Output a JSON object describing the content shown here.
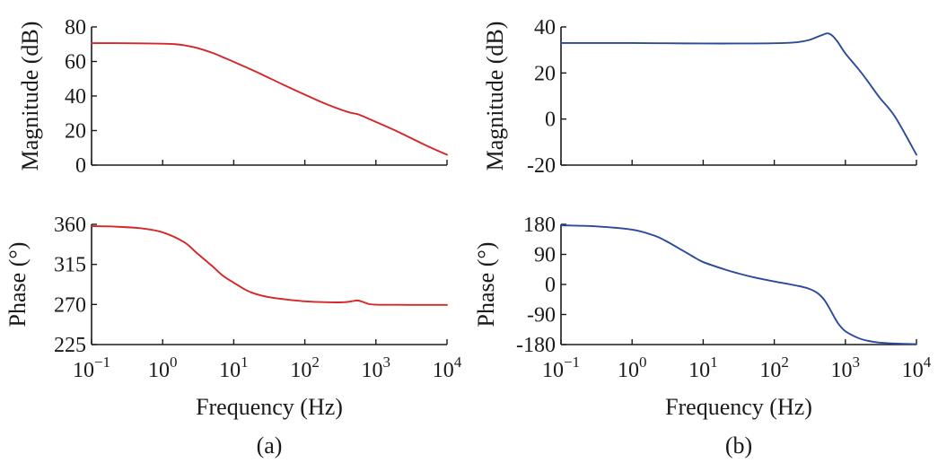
{
  "chart_data": [
    {
      "id": "a",
      "panel_label": "(a)",
      "color": "#d62728",
      "xlabel": "Frequency (Hz)",
      "xscale": "log",
      "xlim": [
        0.1,
        10000
      ],
      "xticks": [
        {
          "value": 0.1,
          "base": "10",
          "exp": "−1"
        },
        {
          "value": 1,
          "base": "10",
          "exp": "0"
        },
        {
          "value": 10,
          "base": "10",
          "exp": "1"
        },
        {
          "value": 100,
          "base": "10",
          "exp": "2"
        },
        {
          "value": 1000,
          "base": "10",
          "exp": "3"
        },
        {
          "value": 10000,
          "base": "10",
          "exp": "4"
        }
      ],
      "magnitude": {
        "ylabel": "Magnitude (dB)",
        "ylim": [
          0,
          80
        ],
        "yticks": [
          {
            "value": 0,
            "label": "0"
          },
          {
            "value": 20,
            "label": "20"
          },
          {
            "value": 40,
            "label": "40"
          },
          {
            "value": 60,
            "label": "60"
          },
          {
            "value": 80,
            "label": "80"
          }
        ],
        "series": [
          {
            "x": [
              0.1,
              0.2,
              0.5,
              1,
              1.5,
              2,
              3,
              5,
              7,
              10,
              20,
              50,
              100,
              200,
              400,
              550,
              700,
              1000,
              2000,
              5000,
              10000
            ],
            "y": [
              70.6,
              70.6,
              70.5,
              70.3,
              70.0,
              69.4,
              67.9,
              65.0,
              62.5,
              59.8,
              54.3,
              46.5,
              40.8,
              35.3,
              30.8,
              29.5,
              27.8,
              25.0,
              19.5,
              11.5,
              6.0
            ]
          }
        ]
      },
      "phase": {
        "ylabel": "Phase (°)",
        "ylim": [
          225,
          360
        ],
        "yticks": [
          {
            "value": 225,
            "label": "225"
          },
          {
            "value": 270,
            "label": "270"
          },
          {
            "value": 315,
            "label": "315"
          },
          {
            "value": 360,
            "label": "360"
          }
        ],
        "series": [
          {
            "x": [
              0.1,
              0.2,
              0.5,
              1,
              2,
              3,
              5,
              7,
              10,
              15,
              20,
              30,
              50,
              100,
              200,
              350,
              450,
              550,
              650,
              800,
              1000,
              2000,
              5000,
              10000
            ],
            "y": [
              358.0,
              357.5,
              355.5,
              351.0,
              340.0,
              328.0,
              313.0,
              302.5,
              294.5,
              286.0,
              282.0,
              278.5,
              276.0,
              273.5,
              272.5,
              272.5,
              273.5,
              274.5,
              273.0,
              270.5,
              269.8,
              269.6,
              269.5,
              269.5
            ]
          }
        ]
      }
    },
    {
      "id": "b",
      "panel_label": "(b)",
      "color": "#2b4a9c",
      "xlabel": "Frequency (Hz)",
      "xscale": "log",
      "xlim": [
        0.1,
        10000
      ],
      "xticks": [
        {
          "value": 0.1,
          "base": "10",
          "exp": "−1"
        },
        {
          "value": 1,
          "base": "10",
          "exp": "0"
        },
        {
          "value": 10,
          "base": "10",
          "exp": "1"
        },
        {
          "value": 100,
          "base": "10",
          "exp": "2"
        },
        {
          "value": 1000,
          "base": "10",
          "exp": "3"
        },
        {
          "value": 10000,
          "base": "10",
          "exp": "4"
        }
      ],
      "magnitude": {
        "ylabel": "Magnitude (dB)",
        "ylim": [
          -20,
          40
        ],
        "yticks": [
          {
            "value": -20,
            "label": "-20"
          },
          {
            "value": 0,
            "label": "0"
          },
          {
            "value": 20,
            "label": "20"
          },
          {
            "value": 40,
            "label": "40"
          }
        ],
        "series": [
          {
            "x": [
              0.1,
              0.5,
              1,
              3,
              10,
              30,
              100,
              200,
              300,
              400,
              500,
              550,
              600,
              650,
              700,
              800,
              1000,
              1500,
              2000,
              3000,
              5000,
              10000
            ],
            "y": [
              33.0,
              33.0,
              33.0,
              32.9,
              32.8,
              32.8,
              32.9,
              33.3,
              34.2,
              35.6,
              36.8,
              37.2,
              37.0,
              36.3,
              35.3,
              33.0,
              28.5,
              22.0,
              17.0,
              9.5,
              1.0,
              -15.5
            ]
          }
        ]
      },
      "phase": {
        "ylabel": "Phase (°)",
        "ylim": [
          -180,
          180
        ],
        "yticks": [
          {
            "value": -180,
            "label": "-180"
          },
          {
            "value": -90,
            "label": "-90"
          },
          {
            "value": 0,
            "label": "0"
          },
          {
            "value": 90,
            "label": "90"
          },
          {
            "value": 180,
            "label": "180"
          }
        ],
        "series": [
          {
            "x": [
              0.1,
              0.3,
              1,
              2,
              3,
              5,
              7,
              10,
              20,
              30,
              50,
              100,
              200,
              300,
              400,
              500,
              600,
              700,
              800,
              1000,
              1500,
              2000,
              3000,
              5000,
              10000
            ],
            "y": [
              177.0,
              174.0,
              164.0,
              147.0,
              130.0,
              103.0,
              85.0,
              67.0,
              45.0,
              34.0,
              22.0,
              9.0,
              -3.0,
              -12.0,
              -25.0,
              -45.0,
              -72.0,
              -98.0,
              -118.0,
              -140.0,
              -160.0,
              -168.0,
              -174.0,
              -177.0,
              -179.0
            ]
          }
        ]
      }
    }
  ]
}
